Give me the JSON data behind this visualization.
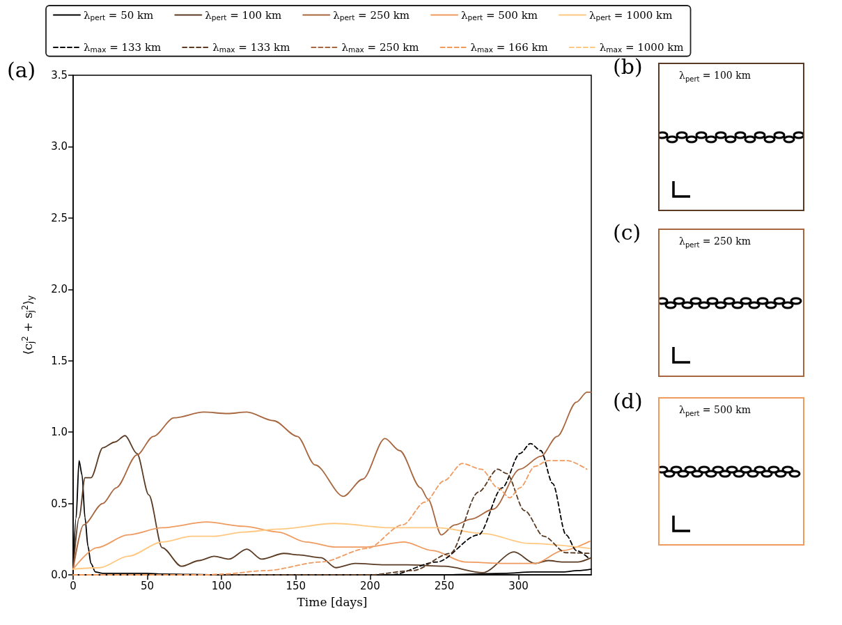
{
  "chart_data": [
    {
      "type": "line",
      "title": "(a)",
      "xlabel": "Time [days]",
      "ylabel": "⟨c$_{j}$$^{2}$ + s$_{j}$$^{2}$⟩$_{y}$",
      "xlim": [
        0,
        349
      ],
      "xticks": [
        0,
        50,
        100,
        150,
        200,
        250,
        300
      ],
      "ylim": [
        0,
        3.5
      ],
      "yticks": [
        {
          "value": 0,
          "label": "0.0"
        },
        {
          "value": 0.5,
          "label": "0.5"
        },
        {
          "value": 1,
          "label": "1.0"
        },
        {
          "value": 1.5,
          "label": "1.5"
        },
        {
          "value": 2,
          "label": "2.0"
        },
        {
          "value": 2.5,
          "label": "2.5"
        },
        {
          "value": 3,
          "label": "3.0"
        },
        {
          "value": 3.5,
          "label": "3.5"
        }
      ],
      "grid": false,
      "legend": "top",
      "marker": "none",
      "series": [
        {
          "name": "λ$_{pert}$ = 50 km",
          "color": "#000000",
          "line_style": "solid",
          "x": [
            0,
            2,
            4,
            6,
            8,
            10,
            12,
            15,
            20,
            50,
            60,
            100,
            250,
            290,
            310,
            330,
            340,
            349
          ],
          "values": [
            0.04,
            0.4,
            0.8,
            0.7,
            0.4,
            0.2,
            0.08,
            0.02,
            0.01,
            0.01,
            0.005,
            0,
            0,
            0.01,
            0.02,
            0.02,
            0.03,
            0.04
          ]
        },
        {
          "name": "λ$_{pert}$ = 100 km",
          "color": "#5a3a22",
          "line_style": "solid",
          "x": [
            0,
            4,
            8,
            12,
            20,
            28,
            35,
            43,
            51,
            60,
            73,
            85,
            95,
            105,
            117,
            127,
            142,
            152,
            167,
            177,
            190,
            210,
            225,
            250,
            276,
            297,
            311,
            320,
            330,
            340,
            349
          ],
          "values": [
            0.04,
            0.4,
            0.68,
            0.68,
            0.89,
            0.93,
            0.975,
            0.85,
            0.56,
            0.19,
            0.06,
            0.1,
            0.13,
            0.11,
            0.18,
            0.11,
            0.15,
            0.14,
            0.12,
            0.05,
            0.08,
            0.07,
            0.07,
            0.06,
            0.015,
            0.16,
            0.08,
            0.1,
            0.09,
            0.09,
            0.12
          ]
        },
        {
          "name": "λ$_{pert}$ = 250 km",
          "color": "#a8663f",
          "line_style": "solid",
          "x": [
            0,
            7,
            20,
            29,
            43,
            54,
            68,
            88,
            104,
            117,
            135,
            151,
            163,
            182,
            195,
            210,
            220,
            234,
            239,
            248,
            257,
            268,
            283,
            301,
            315,
            326,
            339,
            346,
            349
          ],
          "values": [
            0.04,
            0.35,
            0.5,
            0.61,
            0.84,
            0.97,
            1.1,
            1.14,
            1.13,
            1.14,
            1.08,
            0.97,
            0.77,
            0.55,
            0.67,
            0.955,
            0.87,
            0.61,
            0.53,
            0.28,
            0.35,
            0.39,
            0.46,
            0.74,
            0.83,
            0.97,
            1.21,
            1.28,
            1.28
          ]
        },
        {
          "name": "λ$_{pert}$ = 500 km",
          "color": "#ef9a5f",
          "line_style": "solid",
          "x": [
            0,
            16,
            37,
            60,
            90,
            115,
            138,
            157,
            176,
            198,
            223,
            242,
            264,
            290,
            311,
            330,
            348
          ],
          "values": [
            0.04,
            0.19,
            0.28,
            0.33,
            0.37,
            0.34,
            0.3,
            0.23,
            0.195,
            0.195,
            0.23,
            0.17,
            0.09,
            0.08,
            0.08,
            0.17,
            0.235
          ]
        },
        {
          "name": "λ$_{pert}$ = 1000 km",
          "color": "#ffc880",
          "line_style": "solid",
          "x": [
            0,
            18,
            37,
            60,
            80,
            95,
            115,
            138,
            176,
            214,
            245,
            276,
            307,
            348
          ],
          "values": [
            0.04,
            0.05,
            0.13,
            0.23,
            0.27,
            0.27,
            0.3,
            0.32,
            0.36,
            0.33,
            0.33,
            0.29,
            0.22,
            0.185
          ]
        },
        {
          "name": "λ$_{max}$ = 133 km",
          "color": "#000000",
          "line_style": "dashed",
          "x": [
            0,
            214,
            245,
            273,
            289,
            301,
            308,
            315,
            323,
            332,
            339,
            348
          ],
          "values": [
            0,
            0,
            0.09,
            0.28,
            0.61,
            0.85,
            0.92,
            0.87,
            0.64,
            0.28,
            0.17,
            0.11
          ]
        },
        {
          "name": "λ$_{max}$ = 133 km",
          "color": "#5a3a22",
          "line_style": "dashed",
          "x": [
            0,
            200,
            229,
            254,
            273,
            286,
            292,
            304,
            317,
            332,
            348
          ],
          "values": [
            0,
            0,
            0.03,
            0.15,
            0.58,
            0.74,
            0.71,
            0.45,
            0.27,
            0.155,
            0.15
          ]
        },
        {
          "name": "λ$_{max}$ = 250 km",
          "color": "#a8663f",
          "line_style": "dashed"
        },
        {
          "name": "λ$_{max}$ = 166 km",
          "color": "#ef9a5f",
          "line_style": "dashed",
          "x": [
            0,
            90,
            100,
            130,
            167,
            198,
            222,
            237,
            250,
            262,
            275,
            286,
            294,
            301,
            311,
            320,
            333,
            346
          ],
          "values": [
            0,
            0,
            0.005,
            0.03,
            0.09,
            0.185,
            0.35,
            0.51,
            0.66,
            0.78,
            0.74,
            0.61,
            0.54,
            0.61,
            0.76,
            0.8,
            0.8,
            0.74
          ]
        },
        {
          "name": "λ$_{max}$ = 1000 km",
          "color": "#ffc880",
          "line_style": "dashed"
        }
      ]
    },
    {
      "type": "other",
      "title": "(b)",
      "color": "#5a3a22",
      "annotations": [
        "λ$_{pert}$ = 100 km"
      ]
    },
    {
      "type": "other",
      "title": "(c)",
      "color": "#a8663f",
      "annotations": [
        "λ$_{pert}$ = 250 km"
      ]
    },
    {
      "type": "other",
      "title": "(d)",
      "color": "#ef9a5f",
      "annotations": [
        "λ$_{pert}$ = 500 km"
      ]
    }
  ]
}
